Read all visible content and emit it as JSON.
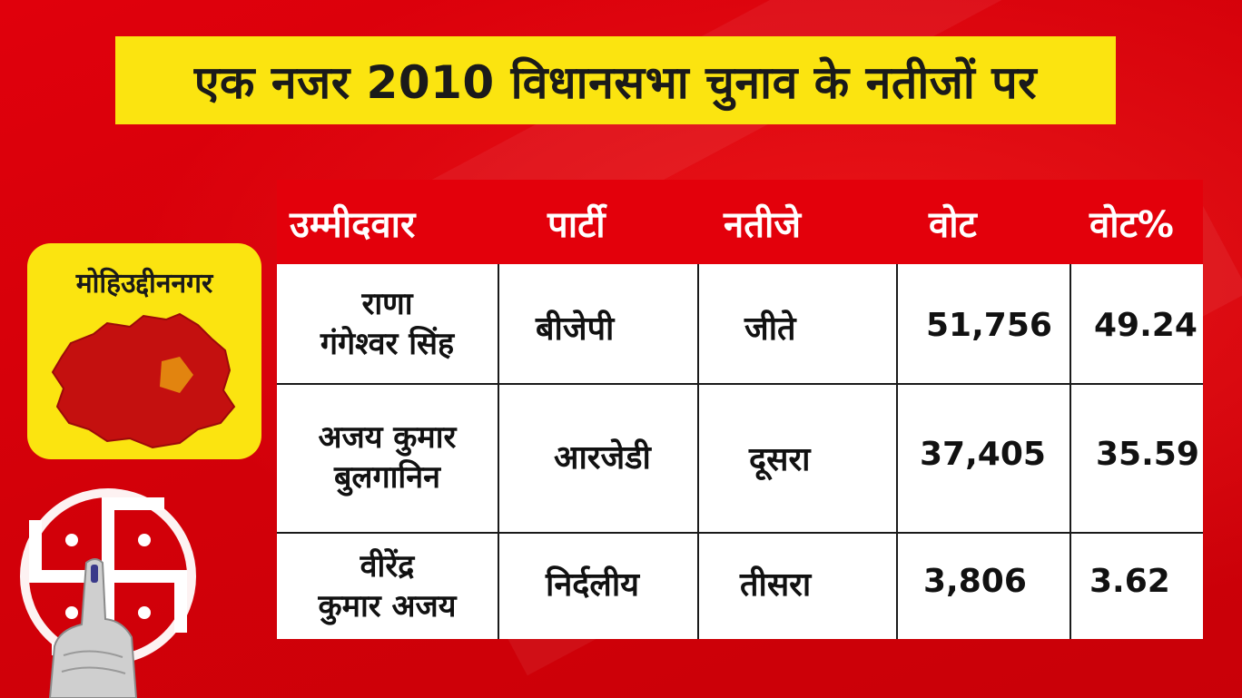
{
  "title": "एक नजर 2010 विधानसभा चुनाव के नतीजों पर",
  "constituency": "मोहिउद्दीननगर",
  "table": {
    "headers": [
      "उम्मीदवार",
      "पार्टी",
      "नतीजे",
      "वोट",
      "वोट%"
    ],
    "rows": [
      {
        "candidate_line1": "राणा",
        "candidate_line2": "गंगेश्वर सिंह",
        "party": "बीजेपी",
        "result": "जीते",
        "votes": "51,756",
        "vote_pct": "49.24"
      },
      {
        "candidate_line1": "अजय कुमार",
        "candidate_line2": "बुलगानिन",
        "party": "आरजेडी",
        "result": "दूसरा",
        "votes": "37,405",
        "vote_pct": "35.59"
      },
      {
        "candidate_line1": "वीरेंद्र",
        "candidate_line2": "कुमार अजय",
        "party": "निर्दलीय",
        "result": "तीसरा",
        "votes": "3,806",
        "vote_pct": "3.62"
      }
    ]
  },
  "icons": {
    "map": "constituency-map-icon",
    "ballot": "ballot-swastika-icon",
    "finger": "inked-finger-icon"
  },
  "colors": {
    "background_red": "#d9000a",
    "banner_yellow": "#fbe410",
    "header_red": "#e3000b",
    "map_red": "#c4100f"
  }
}
